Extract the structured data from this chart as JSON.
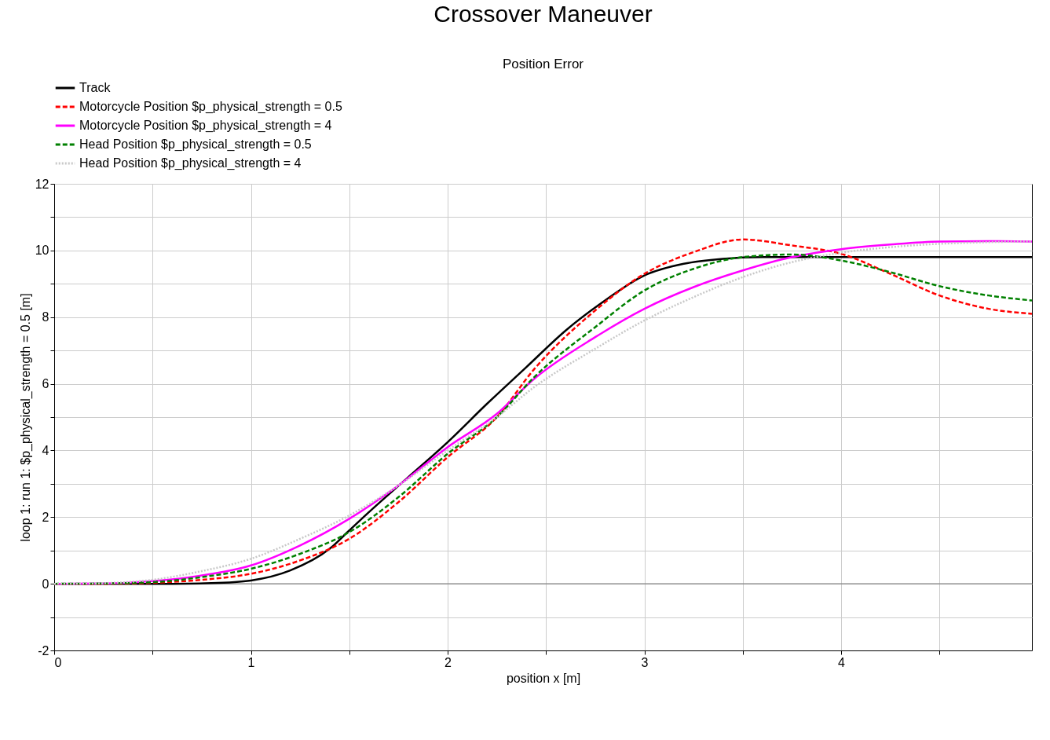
{
  "chart_data": {
    "type": "line",
    "title": "Crossover  Maneuver",
    "subtitle": "Position Error",
    "xlabel": "position x [m]",
    "ylabel": "loop 1: run 1: $p_physical_strength = 0.5 [m]",
    "xlim": [
      0,
      4.97
    ],
    "xticks": [
      0,
      {
        "value": 0.5,
        "label": null
      },
      1,
      {
        "value": 1.5,
        "label": null
      },
      2,
      {
        "value": 2.5,
        "label": null
      },
      3,
      {
        "value": 3.5,
        "label": null
      },
      4,
      {
        "value": 4.5,
        "label": null
      }
    ],
    "ylim": [
      -2,
      12
    ],
    "yticks": [
      -2,
      {
        "value": -1,
        "label": null
      },
      0,
      {
        "value": 1,
        "label": null
      },
      2,
      {
        "value": 3,
        "label": null
      },
      4,
      {
        "value": 5,
        "label": null
      },
      6,
      {
        "value": 7,
        "label": null
      },
      8,
      {
        "value": 9,
        "label": null
      },
      10,
      {
        "value": 11,
        "label": null
      },
      12
    ],
    "grid": true,
    "legend": "top",
    "marker": "none",
    "ref_lines": [
      {
        "axis": "y",
        "value": 0,
        "color": "#808080"
      }
    ],
    "series": [
      {
        "name": "Track",
        "color": "#000000",
        "line_style": "solid",
        "x": [
          0,
          0.6,
          0.8,
          1,
          1.2,
          1.4,
          1.5,
          1.6,
          1.8,
          2,
          2.2,
          2.4,
          2.6,
          2.8,
          3,
          3.2,
          3.4,
          3.6,
          4,
          4.5,
          4.97
        ],
        "values": [
          0,
          0,
          0.02,
          0.1,
          0.4,
          1.05,
          1.6,
          2.15,
          3.2,
          4.25,
          5.4,
          6.5,
          7.6,
          8.5,
          9.25,
          9.6,
          9.75,
          9.8,
          9.8,
          9.8,
          9.8
        ]
      },
      {
        "name": "Motorcycle Position $p_physical_strength = 0.5",
        "color": "#ff0000",
        "line_style": "dashed",
        "x": [
          0,
          0.25,
          0.5,
          0.75,
          1,
          1.25,
          1.5,
          1.75,
          2,
          2.25,
          2.44,
          2.75,
          3,
          3.25,
          3.5,
          3.75,
          4,
          4.25,
          4.5,
          4.75,
          4.97
        ],
        "values": [
          0,
          0,
          0.03,
          0.12,
          0.3,
          0.7,
          1.35,
          2.45,
          3.8,
          5.0,
          6.44,
          8.2,
          9.3,
          9.95,
          10.33,
          10.15,
          9.9,
          9.3,
          8.65,
          8.25,
          8.1
        ]
      },
      {
        "name": "Motorcycle Position $p_physical_strength = 4",
        "color": "#ff00ff",
        "line_style": "solid",
        "x": [
          0,
          0.25,
          0.5,
          0.75,
          1,
          1.25,
          1.5,
          1.75,
          2,
          2.25,
          2.44,
          2.75,
          3,
          3.25,
          3.5,
          3.75,
          4,
          4.25,
          4.5,
          4.75,
          4.97
        ],
        "values": [
          0,
          0.01,
          0.08,
          0.25,
          0.55,
          1.15,
          1.95,
          2.95,
          4.1,
          5.1,
          6.15,
          7.4,
          8.25,
          8.9,
          9.4,
          9.8,
          10.04,
          10.18,
          10.27,
          10.28,
          10.27
        ]
      },
      {
        "name": "Head Position $p_physical_strength = 0.5",
        "color": "#008000",
        "line_style": "dashed",
        "x": [
          0,
          0.25,
          0.5,
          0.75,
          1,
          1.25,
          1.5,
          1.75,
          2,
          2.25,
          2.44,
          2.75,
          3,
          3.25,
          3.5,
          3.75,
          4,
          4.25,
          4.5,
          4.75,
          4.97
        ],
        "values": [
          0,
          0.01,
          0.05,
          0.2,
          0.45,
          0.9,
          1.55,
          2.6,
          3.9,
          5.0,
          6.2,
          7.7,
          8.8,
          9.45,
          9.8,
          9.88,
          9.7,
          9.35,
          8.93,
          8.65,
          8.5
        ]
      },
      {
        "name": "Head Position $p_physical_strength = 4",
        "color": "#c8c8c8",
        "line_style": "dotted",
        "x": [
          0,
          0.25,
          0.5,
          0.75,
          1,
          1.25,
          1.5,
          1.75,
          2,
          2.25,
          2.44,
          2.75,
          3,
          3.25,
          3.5,
          3.75,
          4,
          4.25,
          4.5,
          4.75,
          4.97
        ],
        "values": [
          0,
          0.02,
          0.12,
          0.38,
          0.75,
          1.35,
          2.05,
          2.95,
          4.0,
          5.0,
          5.9,
          7.05,
          7.9,
          8.6,
          9.2,
          9.65,
          9.93,
          10.1,
          10.2,
          10.25,
          10.27
        ]
      }
    ]
  }
}
